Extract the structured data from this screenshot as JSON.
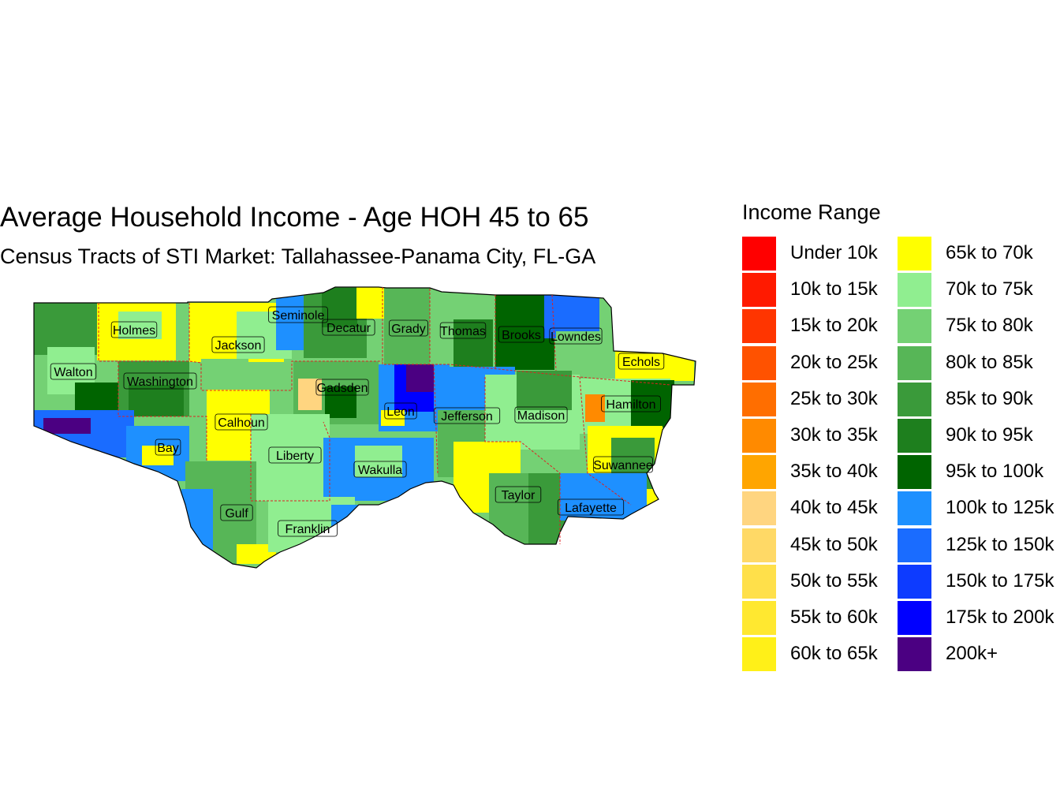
{
  "title": "Average Household Income - Age HOH 45 to 65",
  "subtitle": "Census Tracts of STI Market: Tallahassee-Panama City, FL-GA",
  "legend": {
    "title": "Income Range",
    "items": [
      {
        "label": "Under 10k",
        "color": "#FF0000"
      },
      {
        "label": "10k to 15k",
        "color": "#FF1A00"
      },
      {
        "label": "15k to 20k",
        "color": "#FF3500"
      },
      {
        "label": "20k to 25k",
        "color": "#FF5200"
      },
      {
        "label": "25k to 30k",
        "color": "#FF6E00"
      },
      {
        "label": "30k to 35k",
        "color": "#FF8A00"
      },
      {
        "label": "35k to 40k",
        "color": "#FFA500"
      },
      {
        "label": "40k to 45k",
        "color": "#FFD580"
      },
      {
        "label": "45k to 50k",
        "color": "#FFD966"
      },
      {
        "label": "50k to 55k",
        "color": "#FFE04A"
      },
      {
        "label": "55k to 60k",
        "color": "#FFE830"
      },
      {
        "label": "60k to 65k",
        "color": "#FFF018"
      },
      {
        "label": "65k to 70k",
        "color": "#FFFF00"
      },
      {
        "label": "70k to 75k",
        "color": "#90EE90"
      },
      {
        "label": "75k to 80k",
        "color": "#74D174"
      },
      {
        "label": "80k to 85k",
        "color": "#57B657"
      },
      {
        "label": "85k to 90k",
        "color": "#3A9A3A"
      },
      {
        "label": "90k to 95k",
        "color": "#1E7F1E"
      },
      {
        "label": "95k to 100k",
        "color": "#006400"
      },
      {
        "label": "100k to 125k",
        "color": "#1E90FF"
      },
      {
        "label": "125k to 150k",
        "color": "#1A6CFF"
      },
      {
        "label": "150k to 175k",
        "color": "#0D3BFF"
      },
      {
        "label": "175k to 200k",
        "color": "#0000FF"
      },
      {
        "label": "200k+",
        "color": "#4B0082"
      }
    ]
  },
  "counties": [
    "Holmes",
    "Seminole",
    "Decatur",
    "Grady",
    "Thomas",
    "Brooks",
    "Lowndes",
    "Jackson",
    "Echols",
    "Walton",
    "Washington",
    "Gadsden",
    "Hamilton",
    "Leon",
    "Jefferson",
    "Madison",
    "Calhoun",
    "Bay",
    "Liberty",
    "Suwannee",
    "Wakulla",
    "Taylor",
    "Lafayette",
    "Gulf",
    "Franklin"
  ]
}
